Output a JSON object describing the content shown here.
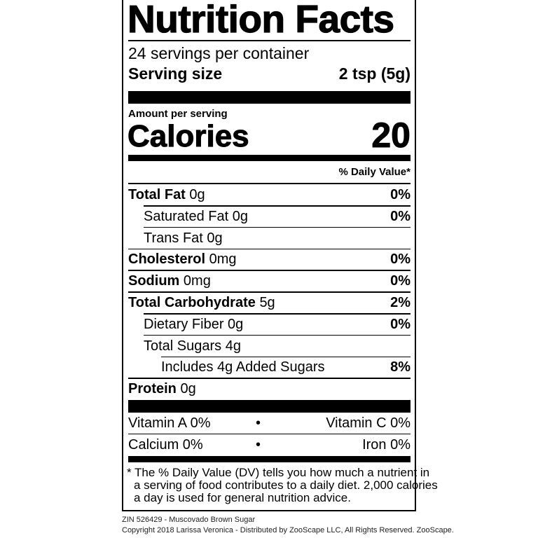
{
  "title": "Nutrition Facts",
  "servings_per_container": "24 servings per container",
  "serving_size_label": "Serving size",
  "serving_size_value": "2 tsp (5g)",
  "amount_per_serving": "Amount per serving",
  "calories_label": "Calories",
  "calories_value": "20",
  "daily_value_header": "% Daily Value*",
  "nutrients": [
    {
      "name": "Total Fat",
      "amount": "0g",
      "dv": "0%"
    },
    {
      "name": "Saturated Fat 0g",
      "amount": "",
      "dv": "0%"
    },
    {
      "name": "Trans Fat 0g",
      "amount": "",
      "dv": ""
    },
    {
      "name": "Cholesterol",
      "amount": "0mg",
      "dv": "0%"
    },
    {
      "name": "Sodium",
      "amount": "0mg",
      "dv": "0%"
    },
    {
      "name": "Total Carbohydrate",
      "amount": "5g",
      "dv": "2%"
    },
    {
      "name": "Dietary Fiber 0g",
      "amount": "",
      "dv": "0%"
    },
    {
      "name": "Total Sugars 4g",
      "amount": "",
      "dv": ""
    },
    {
      "name": "Includes 4g Added Sugars",
      "amount": "",
      "dv": "8%"
    },
    {
      "name": "Protein",
      "amount": "0g",
      "dv": ""
    }
  ],
  "vitamins": {
    "vitamin_a": "Vitamin A 0%",
    "vitamin_c": "Vitamin C 0%",
    "calcium": "Calcium 0%",
    "iron": "Iron 0%",
    "bullet": "•"
  },
  "footnote": [
    "* The % Daily Value (DV) tells you how much a nutrient in",
    "a serving of food contributes to a daily diet. 2,000 calories",
    "a day is used for general nutrition advice."
  ],
  "product_line": "ZIN 526429 - Muscovado Brown Sugar",
  "copyright_line": "Copyright 2018 Larissa Veronica - Distributed by ZooScape LLC, All Rights Reserved. ZooScape."
}
